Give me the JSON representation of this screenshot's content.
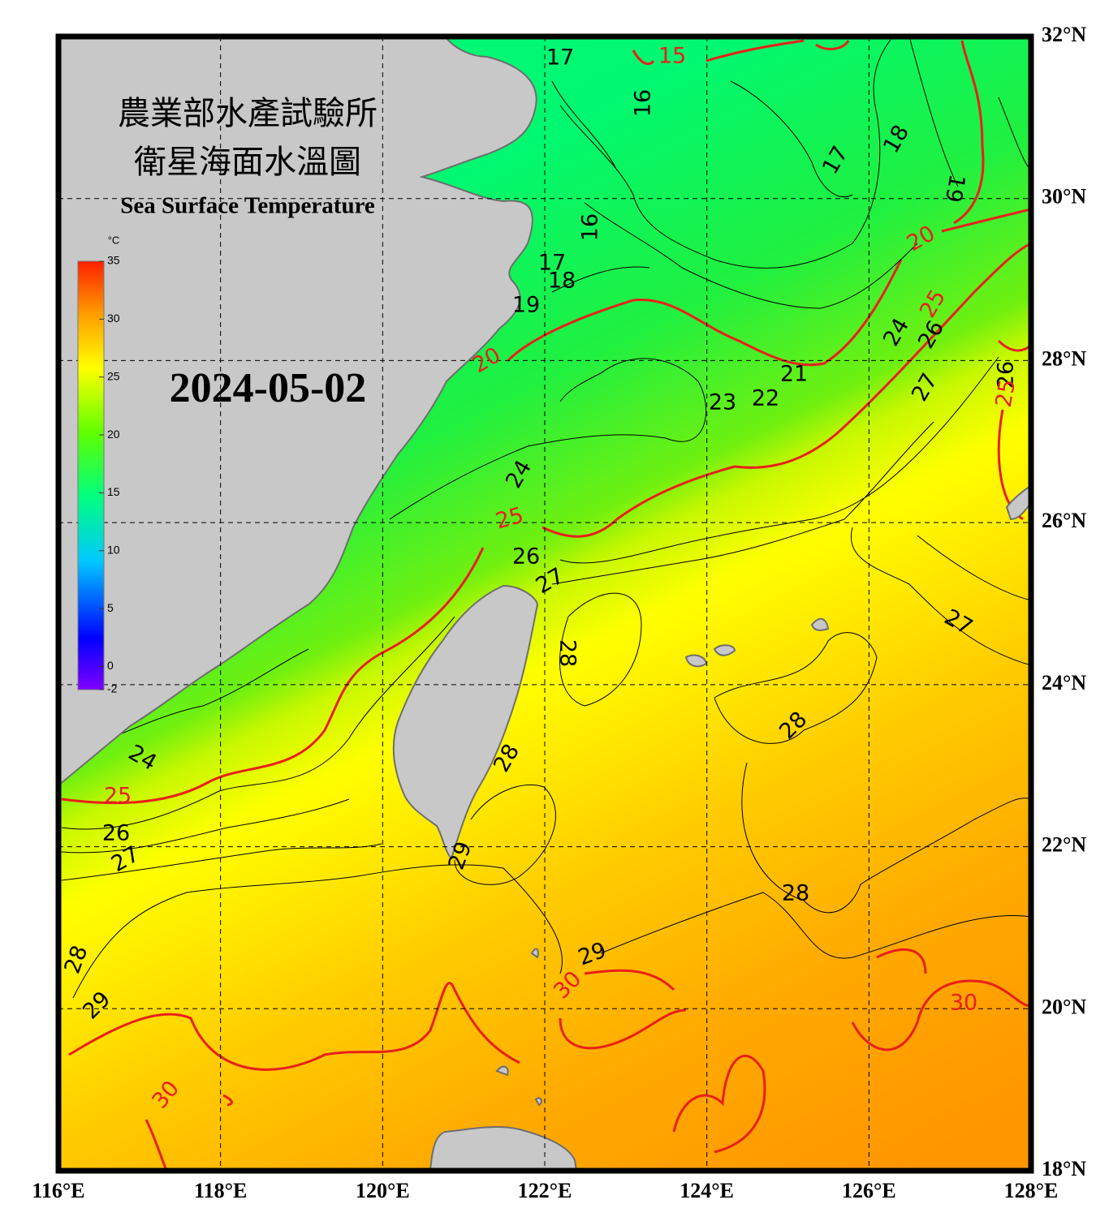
{
  "header": {
    "title_line1": "農業部水產試驗所",
    "title_line2": "衛星海面水溫圖",
    "title_en": "Sea Surface Temperature",
    "date": "2024-05-02"
  },
  "colorbar": {
    "unit": "°C",
    "range": [
      -2,
      35
    ],
    "ticks": [
      -2,
      0,
      5,
      10,
      15,
      20,
      25,
      30,
      35
    ]
  },
  "map": {
    "lon_range": [
      116,
      128
    ],
    "lat_range": [
      18,
      32
    ],
    "grid": true,
    "lon_ticks": [
      {
        "value": 116,
        "label": "116°E"
      },
      {
        "value": 118,
        "label": "118°E"
      },
      {
        "value": 120,
        "label": "120°E"
      },
      {
        "value": 122,
        "label": "122°E"
      },
      {
        "value": 124,
        "label": "124°E"
      },
      {
        "value": 126,
        "label": "126°E"
      },
      {
        "value": 128,
        "label": "128°E"
      }
    ],
    "lat_ticks": [
      {
        "value": 18,
        "label": "18°N"
      },
      {
        "value": 20,
        "label": "20°N"
      },
      {
        "value": 22,
        "label": "22°N"
      },
      {
        "value": 24,
        "label": "24°N"
      },
      {
        "value": 26,
        "label": "26°N"
      },
      {
        "value": 28,
        "label": "28°N"
      },
      {
        "value": 30,
        "label": "30°N"
      },
      {
        "value": 32,
        "label": "32°N"
      }
    ],
    "contour_labels": [
      {
        "value": 17,
        "color": "#000000"
      },
      {
        "value": 15,
        "color": "#e8201a"
      },
      {
        "value": 16,
        "color": "#000000"
      },
      {
        "value": 18,
        "color": "#000000"
      },
      {
        "value": 17,
        "color": "#000000"
      },
      {
        "value": 19,
        "color": "#000000"
      },
      {
        "value": 20,
        "color": "#e8201a"
      },
      {
        "value": 16,
        "color": "#000000"
      },
      {
        "value": 17,
        "color": "#000000"
      },
      {
        "value": 18,
        "color": "#000000"
      },
      {
        "value": 19,
        "color": "#000000"
      },
      {
        "value": 25,
        "color": "#e8201a"
      },
      {
        "value": 20,
        "color": "#e8201a"
      },
      {
        "value": 24,
        "color": "#000000"
      },
      {
        "value": 26,
        "color": "#000000"
      },
      {
        "value": 21,
        "color": "#000000"
      },
      {
        "value": 22,
        "color": "#000000"
      },
      {
        "value": 23,
        "color": "#000000"
      },
      {
        "value": 27,
        "color": "#000000"
      },
      {
        "value": 26,
        "color": "#000000"
      },
      {
        "value": 25,
        "color": "#e8201a"
      },
      {
        "value": 24,
        "color": "#000000"
      },
      {
        "value": 25,
        "color": "#e8201a"
      },
      {
        "value": 26,
        "color": "#000000"
      },
      {
        "value": 27,
        "color": "#000000"
      },
      {
        "value": 27,
        "color": "#000000"
      },
      {
        "value": 28,
        "color": "#000000"
      },
      {
        "value": 28,
        "color": "#000000"
      },
      {
        "value": 28,
        "color": "#000000"
      },
      {
        "value": 24,
        "color": "#000000"
      },
      {
        "value": 25,
        "color": "#e8201a"
      },
      {
        "value": 26,
        "color": "#000000"
      },
      {
        "value": 27,
        "color": "#000000"
      },
      {
        "value": 29,
        "color": "#000000"
      },
      {
        "value": 28,
        "color": "#000000"
      },
      {
        "value": 28,
        "color": "#000000"
      },
      {
        "value": 29,
        "color": "#000000"
      },
      {
        "value": 30,
        "color": "#e8201a"
      },
      {
        "value": 29,
        "color": "#000000"
      },
      {
        "value": 30,
        "color": "#e8201a"
      },
      {
        "value": 30,
        "color": "#e8201a"
      }
    ]
  }
}
